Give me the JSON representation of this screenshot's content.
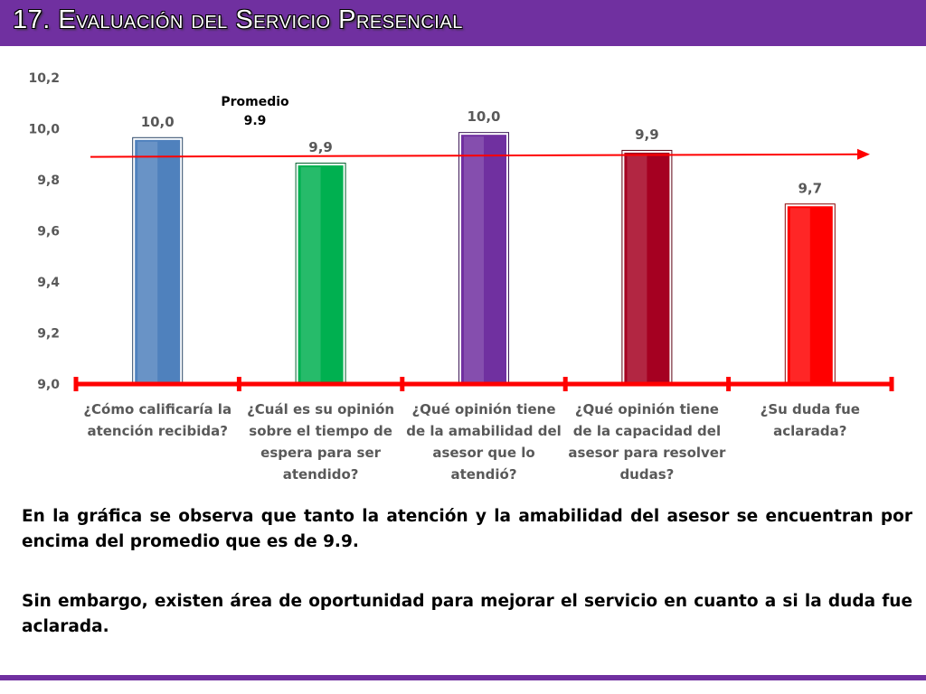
{
  "slide": {
    "title": "17. Evaluación del Servicio Presencial",
    "paragraphs": [
      "En la gráfica se observa que tanto la atención y la amabilidad del asesor se encuentran por encima del promedio que es de 9.9.",
      "Sin embargo, existen área de oportunidad para mejorar el servicio en cuanto a si la duda fue aclarada."
    ],
    "accent_color": "#7030a0"
  },
  "chart_data": {
    "type": "bar",
    "categories": [
      [
        "¿Cómo calificaría la",
        "atención recibida?"
      ],
      [
        "¿Cuál es su opinión",
        "sobre el tiempo de",
        "espera para ser",
        "atendido?"
      ],
      [
        "¿Qué opinión tiene",
        "de la amabilidad del",
        "asesor que lo",
        "atendió?"
      ],
      [
        "¿Qué opinión tiene",
        "de la capacidad del",
        "asesor para resolver",
        "dudas?"
      ],
      [
        "¿Su duda fue",
        "aclarada?"
      ]
    ],
    "values": [
      9.96,
      9.86,
      9.98,
      9.91,
      9.7
    ],
    "value_labels": [
      "10,0",
      "9,9",
      "10,0",
      "9,9",
      "9,7"
    ],
    "bar_colors": [
      "#4f81bd",
      "#00b050",
      "#7030a0",
      "#a50021",
      "#ff0000"
    ],
    "ylim": [
      9.0,
      10.2
    ],
    "yticks": [
      "9,0",
      "9,2",
      "9,4",
      "9,6",
      "9,8",
      "10,0",
      "10,2"
    ],
    "grid": false,
    "average_line": {
      "label_lines": [
        "Promedio",
        "9.9"
      ],
      "start": 9.89,
      "end": 9.9,
      "color": "#ff0000"
    },
    "axis_color": "#ff0000"
  }
}
